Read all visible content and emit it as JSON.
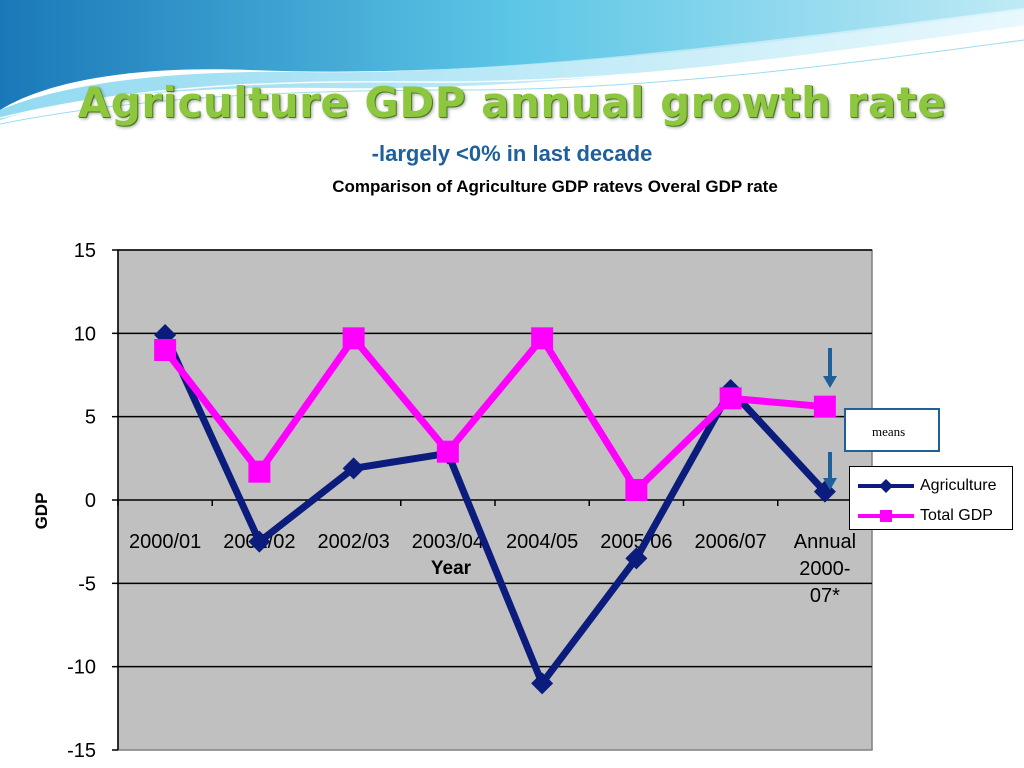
{
  "slide": {
    "title": "Agriculture GDP annual growth rate",
    "subtitle": "-largely <0% in last decade"
  },
  "callout": {
    "text": "means"
  },
  "colors": {
    "agriculture": "#0b1c7c",
    "total_gdp": "#ff00ff",
    "plot_bg": "#c0c0c0",
    "title_green": "#8dc63f",
    "subtitle_blue": "#1f5f9a"
  },
  "chart_data": {
    "type": "line",
    "title": "Comparison of Agriculture GDP  ratevs Overal GDP rate",
    "xlabel": "Year",
    "ylabel": "GDP",
    "categories": [
      "2000/01",
      "2001/02",
      "2002/03",
      "2003/04",
      "2004/05",
      "2005/06",
      "2006/07",
      "Annual 2000-07*"
    ],
    "ylim": [
      -15,
      15
    ],
    "yticks": [
      15,
      10,
      5,
      0,
      -5,
      -10,
      -15
    ],
    "grid": true,
    "legend_position": "right",
    "series": [
      {
        "name": "Agriculture",
        "marker": "diamond",
        "values": [
          9.9,
          -2.5,
          1.9,
          2.8,
          -11.0,
          -3.5,
          6.6,
          0.5
        ]
      },
      {
        "name": "Total GDP",
        "marker": "square",
        "values": [
          9.0,
          1.7,
          9.7,
          2.9,
          9.7,
          0.6,
          6.1,
          5.6
        ]
      }
    ]
  }
}
